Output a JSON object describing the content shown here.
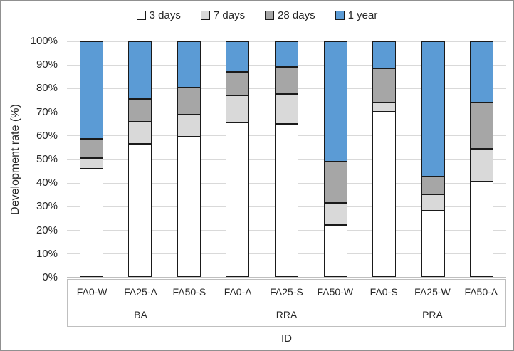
{
  "chart_data": {
    "type": "bar",
    "variant": "100%-stacked-column",
    "title": "",
    "x_axis_title": "ID",
    "y_axis_title": "Development rate (%)",
    "ylim": [
      0,
      100
    ],
    "y_tick_step": 10,
    "y_tick_labels": [
      "0%",
      "10%",
      "20%",
      "30%",
      "40%",
      "50%",
      "60%",
      "70%",
      "80%",
      "90%",
      "100%"
    ],
    "grid": "horizontal",
    "legend_position": "top-center",
    "categories": [
      "FA0-W",
      "FA25-A",
      "FA50-S",
      "FA0-A",
      "FA25-S",
      "FA50-W",
      "FA0-S",
      "FA25-W",
      "FA50-A"
    ],
    "groups": [
      {
        "label": "BA",
        "span": 3
      },
      {
        "label": "RRA",
        "span": 3
      },
      {
        "label": "PRA",
        "span": 3
      }
    ],
    "series": [
      {
        "name": "3 days",
        "color": "#FFFFFF",
        "values": [
          46,
          56.5,
          59.5,
          65.5,
          65,
          22,
          70,
          28,
          40.5
        ]
      },
      {
        "name": "7 days",
        "color": "#D9D9D9",
        "values": [
          4.5,
          9.5,
          9.5,
          11.5,
          12.5,
          9.5,
          4,
          7,
          14
        ]
      },
      {
        "name": "28 days",
        "color": "#A6A6A6",
        "values": [
          8,
          9.5,
          11.5,
          10,
          11.5,
          17.5,
          14.5,
          7.5,
          19.5
        ]
      },
      {
        "name": "1 year",
        "color": "#5B9BD5",
        "values": [
          41.5,
          24.5,
          19.5,
          13,
          11,
          51,
          11.5,
          57.5,
          26
        ]
      }
    ],
    "colors": {
      "bar_border": "#1A1A1A",
      "gridline": "#D9D9D9",
      "axis_box_border": "#BFBFBF",
      "text": "#262626",
      "background": "#FFFFFF"
    }
  }
}
